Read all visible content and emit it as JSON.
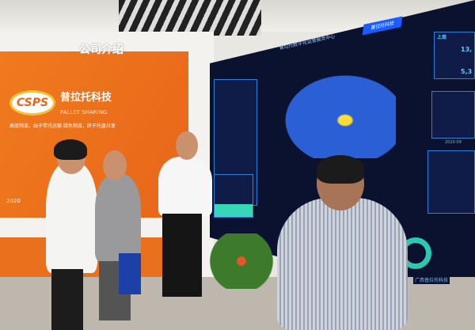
{
  "wall": {
    "sign": "公司介绍",
    "logo": "CSPS",
    "brand": "普拉托科技",
    "brand_en": "PALLET SHARING",
    "slogan": "高效物流，始于带托运输 绿色物流，终于托盘共享",
    "year": "2020"
  },
  "screen": {
    "title": "普拉托数字化运营服务中心",
    "tag": "普拉托科技",
    "stat_label": "上周",
    "stat1": "13,",
    "stat2": "5,3",
    "date": "2020-09",
    "bottom_label": "广西普拉托科技"
  },
  "colors": {
    "orange": "#e8661a",
    "screen": "#0b1230",
    "accent": "#1a5cff"
  }
}
